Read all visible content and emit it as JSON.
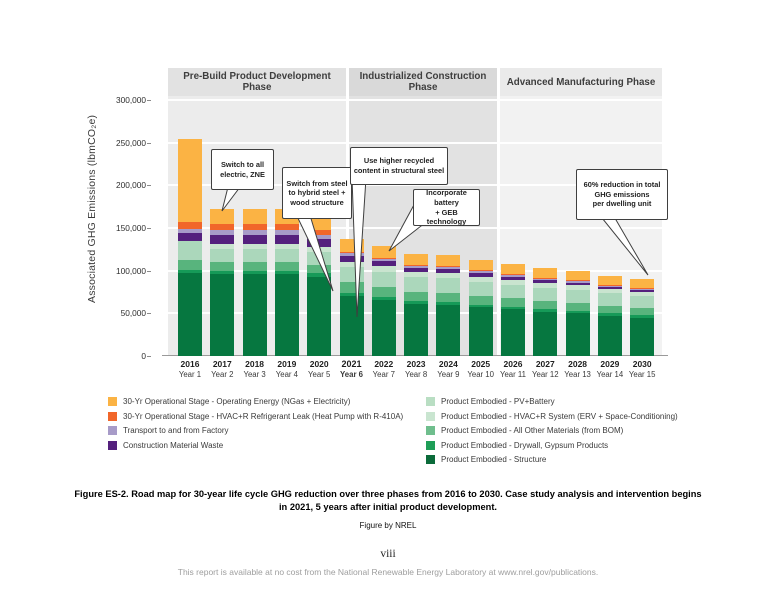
{
  "figure": {
    "caption": "Figure ES-2. Road map for 30-year life cycle GHG reduction over three phases from 2016 to 2030. Case study analysis and intervention begins in 2021, 5 years after initial product development.",
    "credit": "Figure by NREL",
    "page_number": "viii",
    "footer": "This report is available at no cost from the National Renewable Energy Laboratory at www.nrel.gov/publications."
  },
  "chart_data": {
    "type": "bar",
    "stacked": true,
    "ylabel": "Associated GHG Emissions (lbmCO₂e)",
    "ylim": [
      0,
      300000
    ],
    "yticks": [
      {
        "value": 0,
        "label": "0"
      },
      {
        "value": 50000,
        "label": "50,000"
      },
      {
        "value": 100000,
        "label": "100,000"
      },
      {
        "value": 150000,
        "label": "150,000"
      },
      {
        "value": 200000,
        "label": "200,000"
      },
      {
        "value": 250000,
        "label": "250,000"
      },
      {
        "value": 300000,
        "label": "300,000"
      }
    ],
    "phases": [
      {
        "label": "Pre-Build Product Development Phase",
        "year_range": [
          "2016",
          "2020"
        ]
      },
      {
        "label": "Industrialized Construction Phase",
        "year_range": [
          "2021",
          "2025"
        ]
      },
      {
        "label": "Advanced Manufacturing Phase",
        "year_range": [
          "2026",
          "2030"
        ]
      }
    ],
    "years": [
      {
        "year": "2016",
        "sub": "Year 1",
        "bold": false
      },
      {
        "year": "2017",
        "sub": "Year 2",
        "bold": false
      },
      {
        "year": "2018",
        "sub": "Year 3",
        "bold": false
      },
      {
        "year": "2019",
        "sub": "Year 4",
        "bold": false
      },
      {
        "year": "2020",
        "sub": "Year 5",
        "bold": false
      },
      {
        "year": "2021",
        "sub": "Year 6",
        "bold": true
      },
      {
        "year": "2022",
        "sub": "Year 7",
        "bold": false
      },
      {
        "year": "2023",
        "sub": "Year 8",
        "bold": false
      },
      {
        "year": "2024",
        "sub": "Year 9",
        "bold": false
      },
      {
        "year": "2025",
        "sub": "Year 10",
        "bold": false
      },
      {
        "year": "2026",
        "sub": "Year 11",
        "bold": false
      },
      {
        "year": "2027",
        "sub": "Year 12",
        "bold": false
      },
      {
        "year": "2028",
        "sub": "Year 13",
        "bold": false
      },
      {
        "year": "2029",
        "sub": "Year 14",
        "bold": false
      },
      {
        "year": "2030",
        "sub": "Year 15",
        "bold": false
      }
    ],
    "series": [
      {
        "name": "Product Embodied - Structure",
        "color": "#067740",
        "values": [
          97000,
          96000,
          96000,
          96000,
          93000,
          70000,
          65500,
          61000,
          60000,
          57000,
          54500,
          52000,
          50000,
          47000,
          45000
        ]
      },
      {
        "name": "Product Embodied - Drywall, Gypsum Products",
        "color": "#169A58",
        "values": [
          4000,
          4000,
          4000,
          4000,
          4000,
          3500,
          3500,
          3000,
          3000,
          3000,
          3000,
          3000,
          3000,
          3000,
          2500
        ]
      },
      {
        "name": "Product Embodied - All Other Materials (from BOM)",
        "color": "#58B47D",
        "values": [
          11000,
          10000,
          10000,
          10000,
          10000,
          13000,
          12000,
          11000,
          11000,
          10500,
          10000,
          9500,
          9500,
          9000,
          8500
        ]
      },
      {
        "name": "Product Embodied - HVAC+R System (ERV + Space-Conditioning)",
        "color": "#ABD7BB",
        "values": [
          23000,
          15000,
          15000,
          15000,
          15000,
          18000,
          18000,
          17000,
          17000,
          16500,
          16000,
          15500,
          15000,
          14500,
          14000
        ]
      },
      {
        "name": "Product Embodied - PV+Battery",
        "color": "#C9E4CF",
        "values": [
          0,
          6000,
          6000,
          6000,
          6000,
          6000,
          6000,
          6000,
          6000,
          6000,
          6000,
          5500,
          5500,
          5000,
          5000
        ]
      },
      {
        "name": "Construction Material Waste",
        "color": "#54207D",
        "values": [
          9500,
          10500,
          10500,
          10500,
          9000,
          7000,
          6000,
          5000,
          4500,
          4000,
          3500,
          3000,
          3000,
          2500,
          2500
        ]
      },
      {
        "name": "Transport to and from Factory",
        "color": "#A79BC8",
        "values": [
          4000,
          6000,
          6000,
          6000,
          5000,
          3500,
          3000,
          3000,
          2500,
          2500,
          2000,
          2000,
          2000,
          1500,
          1500
        ]
      },
      {
        "name": "30-Yr Operational Stage - HVAC+R Refrigerant Leak (Heat Pump with R-410A)",
        "color": "#F1662A",
        "values": [
          8500,
          7000,
          7000,
          7000,
          6000,
          1000,
          1000,
          1000,
          1000,
          1000,
          1000,
          1000,
          1000,
          1000,
          1000
        ]
      },
      {
        "name": "30-Yr Operational Stage - Operating Energy (NGas + Electricity)",
        "color": "#FBB344",
        "values": [
          97000,
          17500,
          17500,
          17500,
          16000,
          15000,
          14000,
          13000,
          13000,
          12500,
          12000,
          11500,
          11000,
          10500,
          10000
        ]
      }
    ],
    "totals": [
      254000,
      172000,
      172000,
      172000,
      164000,
      137000,
      129000,
      120000,
      118000,
      113000,
      108000,
      103000,
      100000,
      94000,
      90000
    ],
    "annotations": [
      {
        "text": "Switch to all\nelectric, ZNE",
        "target_year": "2017"
      },
      {
        "text": "Switch from steel\nto hybrid steel +\nwood structure",
        "target_year": "2020"
      },
      {
        "text": "Use higher recycled\ncontent in structural steel",
        "target_year": "2021"
      },
      {
        "text": "Incorporate battery\n+ GEB technology",
        "target_year": "2022"
      },
      {
        "text": "60% reduction in total\nGHG emissions\nper dwelling unit",
        "target_year": "2030"
      }
    ]
  },
  "legend": {
    "left": [
      {
        "label": "30-Yr Operational Stage - Operating Energy (NGas + Electricity)",
        "color": "#FBB344"
      },
      {
        "label": "30-Yr Operational Stage - HVAC+R Refrigerant Leak (Heat Pump with R-410A)",
        "color": "#F1662A"
      },
      {
        "label": "Transport to and from Factory",
        "color": "#A79BC8"
      },
      {
        "label": "Construction Material Waste",
        "color": "#54207D"
      }
    ],
    "right": [
      {
        "label": "Product Embodied - PV+Battery",
        "color": "#B9DEC3"
      },
      {
        "label": "Product Embodied - HVAC+R System (ERV + Space-Conditioning)",
        "color": "#C9E5D0"
      },
      {
        "label": "Product Embodied - All Other Materials (from BOM)",
        "color": "#6FBE8D"
      },
      {
        "label": "Product Embodied - Drywall, Gypsum Products",
        "color": "#1E9E57"
      },
      {
        "label": "Product Embodied - Structure",
        "color": "#0B6B3A"
      }
    ]
  }
}
